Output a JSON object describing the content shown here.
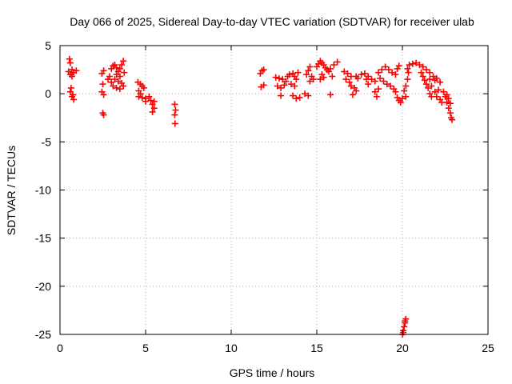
{
  "chart_data": {
    "type": "scatter",
    "title": "Day 066 of 2025, Sidereal Day-to-day VTEC variation (SDTVAR) for receiver ulab",
    "xlabel": "GPS time / hours",
    "ylabel": "SDTVAR / TECUs",
    "xlim": [
      0,
      25
    ],
    "ylim": [
      -25,
      5
    ],
    "xticks": [
      0,
      5,
      10,
      15,
      20,
      25
    ],
    "xtick_labels": [
      "0",
      "5",
      "10",
      "15",
      "20",
      "25"
    ],
    "yticks": [
      5,
      0,
      -5,
      -10,
      -15,
      -20,
      -25
    ],
    "ytick_labels": [
      "5",
      "0",
      "-5",
      "-10",
      "-15",
      "-20",
      "-25"
    ],
    "grid": true,
    "marker": "plus",
    "color": "#ff0000",
    "series": [
      {
        "name": "SDTVAR",
        "points": [
          [
            0.55,
            3.6
          ],
          [
            0.6,
            3.2
          ],
          [
            0.5,
            2.3
          ],
          [
            0.6,
            2.0
          ],
          [
            0.7,
            1.8
          ],
          [
            0.8,
            2.2
          ],
          [
            0.95,
            2.4
          ],
          [
            0.7,
            2.5
          ],
          [
            0.6,
            0.2
          ],
          [
            0.7,
            -0.3
          ],
          [
            0.8,
            -0.6
          ],
          [
            0.65,
            0.6
          ],
          [
            0.75,
            -0.1
          ],
          [
            2.45,
            2.1
          ],
          [
            2.55,
            2.4
          ],
          [
            2.5,
            1.0
          ],
          [
            2.45,
            0.2
          ],
          [
            2.55,
            -0.1
          ],
          [
            2.5,
            -2.0
          ],
          [
            2.55,
            -2.2
          ],
          [
            2.8,
            1.5
          ],
          [
            2.9,
            1.8
          ],
          [
            3.0,
            2.6
          ],
          [
            3.1,
            2.9
          ],
          [
            3.2,
            3.0
          ],
          [
            3.3,
            2.7
          ],
          [
            3.4,
            2.3
          ],
          [
            3.5,
            2.6
          ],
          [
            3.6,
            3.0
          ],
          [
            3.7,
            3.4
          ],
          [
            3.75,
            2.2
          ],
          [
            3.0,
            1.2
          ],
          [
            3.2,
            1.5
          ],
          [
            3.4,
            1.3
          ],
          [
            3.6,
            1.1
          ],
          [
            3.7,
            0.8
          ],
          [
            3.1,
            0.8
          ],
          [
            3.3,
            0.6
          ],
          [
            3.5,
            0.5
          ],
          [
            3.5,
            1.8
          ],
          [
            3.3,
            2.0
          ],
          [
            4.55,
            1.2
          ],
          [
            4.7,
            1.0
          ],
          [
            4.8,
            0.8
          ],
          [
            4.9,
            0.6
          ],
          [
            4.6,
            0.3
          ],
          [
            4.7,
            0.0
          ],
          [
            4.8,
            -0.4
          ],
          [
            5.0,
            -0.5
          ],
          [
            4.6,
            -0.3
          ],
          [
            5.2,
            -0.3
          ],
          [
            5.3,
            -0.7
          ],
          [
            5.4,
            -1.1
          ],
          [
            5.5,
            -1.5
          ],
          [
            5.4,
            -1.9
          ],
          [
            5.5,
            -0.8
          ],
          [
            5.0,
            -0.8
          ],
          [
            6.7,
            -1.1
          ],
          [
            6.75,
            -1.7
          ],
          [
            6.7,
            -2.2
          ],
          [
            6.72,
            -3.1
          ],
          [
            11.7,
            2.1
          ],
          [
            11.8,
            2.4
          ],
          [
            11.9,
            2.5
          ],
          [
            11.75,
            0.7
          ],
          [
            11.9,
            0.9
          ],
          [
            12.6,
            1.7
          ],
          [
            12.8,
            1.6
          ],
          [
            13.0,
            1.5
          ],
          [
            13.2,
            1.3
          ],
          [
            12.7,
            0.8
          ],
          [
            12.9,
            0.6
          ],
          [
            13.1,
            0.9
          ],
          [
            12.9,
            -0.2
          ],
          [
            13.3,
            1.8
          ],
          [
            13.4,
            2.0
          ],
          [
            13.6,
            2.1
          ],
          [
            13.7,
            1.8
          ],
          [
            13.8,
            1.5
          ],
          [
            13.9,
            2.2
          ],
          [
            13.5,
            1.0
          ],
          [
            13.7,
            0.8
          ],
          [
            13.6,
            -0.2
          ],
          [
            13.8,
            -0.5
          ],
          [
            14.0,
            -0.4
          ],
          [
            14.3,
            0.0
          ],
          [
            14.5,
            -0.2
          ],
          [
            14.4,
            2.0
          ],
          [
            14.5,
            2.4
          ],
          [
            14.6,
            2.8
          ],
          [
            14.7,
            1.8
          ],
          [
            14.8,
            1.5
          ],
          [
            14.6,
            1.3
          ],
          [
            15.0,
            2.8
          ],
          [
            15.1,
            3.1
          ],
          [
            15.2,
            3.4
          ],
          [
            15.3,
            3.2
          ],
          [
            15.4,
            3.0
          ],
          [
            15.5,
            2.7
          ],
          [
            15.6,
            2.5
          ],
          [
            15.7,
            2.3
          ],
          [
            15.8,
            2.6
          ],
          [
            16.0,
            3.0
          ],
          [
            16.2,
            3.3
          ],
          [
            15.3,
            2.0
          ],
          [
            15.4,
            1.7
          ],
          [
            15.2,
            1.5
          ],
          [
            15.9,
            1.8
          ],
          [
            15.8,
            -0.1
          ],
          [
            16.6,
            2.3
          ],
          [
            16.8,
            2.1
          ],
          [
            17.0,
            1.8
          ],
          [
            16.7,
            1.5
          ],
          [
            16.9,
            1.2
          ],
          [
            17.0,
            0.8
          ],
          [
            17.2,
            0.6
          ],
          [
            17.3,
            0.3
          ],
          [
            17.1,
            -0.1
          ],
          [
            17.3,
            1.8
          ],
          [
            17.4,
            1.6
          ],
          [
            17.6,
            2.0
          ],
          [
            17.8,
            2.1
          ],
          [
            18.0,
            1.8
          ],
          [
            18.2,
            1.5
          ],
          [
            18.4,
            1.3
          ],
          [
            18.0,
            1.0
          ],
          [
            17.9,
            1.5
          ],
          [
            18.6,
            2.2
          ],
          [
            18.8,
            2.5
          ],
          [
            19.0,
            2.8
          ],
          [
            19.2,
            2.5
          ],
          [
            19.4,
            2.2
          ],
          [
            19.6,
            2.0
          ],
          [
            19.7,
            2.6
          ],
          [
            19.8,
            2.9
          ],
          [
            18.7,
            1.6
          ],
          [
            18.9,
            1.3
          ],
          [
            19.1,
            1.0
          ],
          [
            18.6,
            0.5
          ],
          [
            18.4,
            0.2
          ],
          [
            18.5,
            -0.3
          ],
          [
            19.3,
            0.8
          ],
          [
            19.5,
            0.5
          ],
          [
            19.6,
            0.2
          ],
          [
            19.7,
            -0.4
          ],
          [
            19.8,
            -0.7
          ],
          [
            19.9,
            -0.9
          ],
          [
            20.0,
            -0.5
          ],
          [
            20.2,
            -0.3
          ],
          [
            20.1,
            0.3
          ],
          [
            20.2,
            0.8
          ],
          [
            20.3,
            1.5
          ],
          [
            20.35,
            2.2
          ],
          [
            20.3,
            2.6
          ],
          [
            20.4,
            3.0
          ],
          [
            20.6,
            3.1
          ],
          [
            20.8,
            3.2
          ],
          [
            21.0,
            3.0
          ],
          [
            21.2,
            2.8
          ],
          [
            21.4,
            2.5
          ],
          [
            21.6,
            2.2
          ],
          [
            21.8,
            1.8
          ],
          [
            22.0,
            1.6
          ],
          [
            22.2,
            1.2
          ],
          [
            21.9,
            1.4
          ],
          [
            21.6,
            1.5
          ],
          [
            21.1,
            2.2
          ],
          [
            21.2,
            1.8
          ],
          [
            21.3,
            1.4
          ],
          [
            21.4,
            1.0
          ],
          [
            21.5,
            0.6
          ],
          [
            21.6,
            0.0
          ],
          [
            21.7,
            -0.3
          ],
          [
            21.9,
            0.2
          ],
          [
            22.0,
            -0.3
          ],
          [
            22.2,
            -0.6
          ],
          [
            22.3,
            -0.9
          ],
          [
            22.1,
            0.4
          ],
          [
            21.7,
            0.8
          ],
          [
            22.4,
            0.2
          ],
          [
            22.5,
            -0.3
          ],
          [
            22.6,
            -0.9
          ],
          [
            22.7,
            -1.5
          ],
          [
            22.8,
            -2.0
          ],
          [
            22.85,
            -2.5
          ],
          [
            22.9,
            -2.7
          ],
          [
            22.6,
            -0.1
          ],
          [
            22.7,
            -0.5
          ],
          [
            22.8,
            -1.0
          ],
          [
            20.0,
            -25.0
          ],
          [
            20.05,
            -24.6
          ],
          [
            20.1,
            -24.2
          ],
          [
            20.15,
            -23.8
          ],
          [
            20.2,
            -23.4
          ],
          [
            20.05,
            -24.8
          ],
          [
            20.15,
            -23.6
          ]
        ]
      }
    ]
  }
}
